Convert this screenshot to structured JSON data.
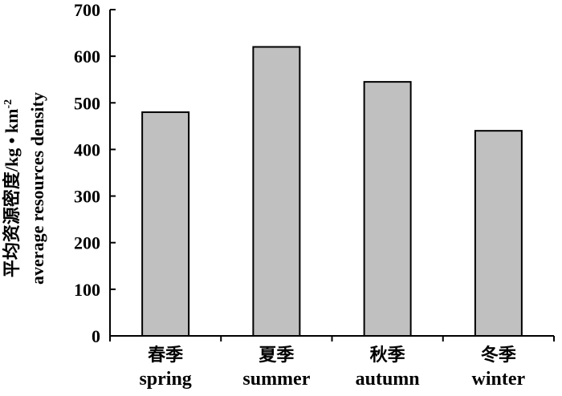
{
  "chart_data": {
    "type": "bar",
    "categories": [
      {
        "zh": "春季",
        "en": "spring"
      },
      {
        "zh": "夏季",
        "en": "summer"
      },
      {
        "zh": "秋季",
        "en": "autumn"
      },
      {
        "zh": "冬季",
        "en": "winter"
      }
    ],
    "values": [
      480,
      620,
      545,
      440
    ],
    "ylabel_zh": "平均资源密度/kg • km",
    "ylabel_sup": "-2",
    "ylabel_en": "average resources density",
    "ylim": [
      0,
      700
    ],
    "yticks": [
      0,
      100,
      200,
      300,
      400,
      500,
      600,
      700
    ],
    "grid": false,
    "bar_fill": "#c0c0c0",
    "bar_stroke": "#000000"
  }
}
